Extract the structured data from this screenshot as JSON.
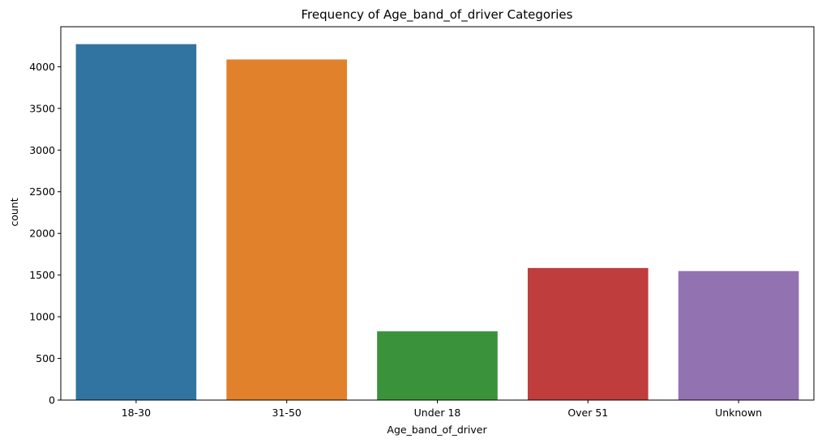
{
  "chart_data": {
    "type": "bar",
    "title": "Frequency of Age_band_of_driver Categories",
    "xlabel": "Age_band_of_driver",
    "ylabel": "count",
    "categories": [
      "18-30",
      "31-50",
      "Under 18",
      "Over 51",
      "Unknown"
    ],
    "values": [
      4271,
      4087,
      825,
      1585,
      1548
    ],
    "colors": [
      "#3274a1",
      "#e1812c",
      "#3a923a",
      "#c03d3e",
      "#9372b2"
    ],
    "ylim": [
      0,
      4480
    ],
    "yticks": [
      0,
      500,
      1000,
      1500,
      2000,
      2500,
      3000,
      3500,
      4000
    ],
    "grid": false,
    "legend": "none"
  }
}
